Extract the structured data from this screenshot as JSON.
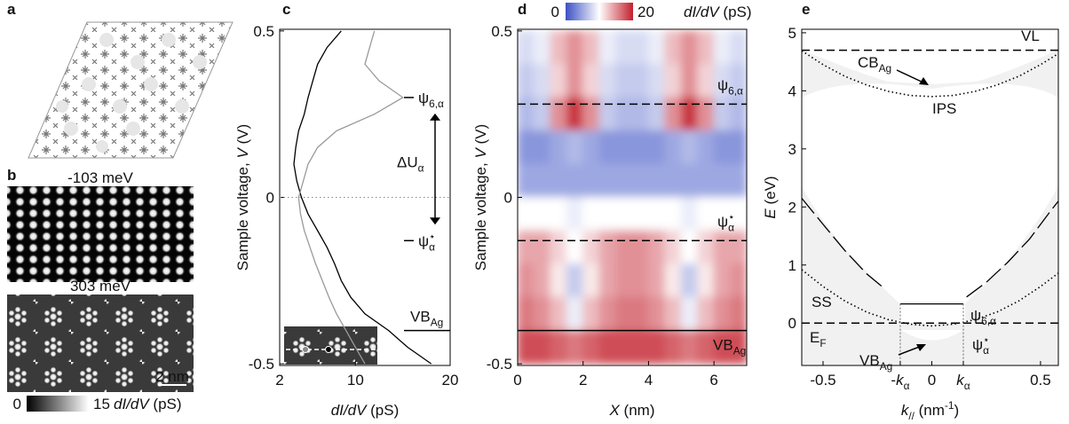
{
  "panel_labels": [
    "a",
    "b",
    "c",
    "d",
    "e"
  ],
  "panel_b": {
    "captions": [
      "-103 meV",
      "303 meV"
    ],
    "scale_bar": "2 nm",
    "colorbar": {
      "ticks": [
        0,
        15
      ],
      "title": [
        {
          "text": "dI/dV",
          "style": "italic"
        },
        {
          "text": " (pS)"
        }
      ]
    }
  },
  "chart_data": [
    {
      "type": "line",
      "x_label": [
        {
          "text": "dI/dV",
          "style": "italic"
        },
        {
          "text": " (pS)"
        }
      ],
      "y_label": [
        {
          "text": "Sample voltage, "
        },
        {
          "text": "V",
          "style": "italic"
        },
        {
          "text": " (V)"
        }
      ],
      "xlim": [
        2,
        20
      ],
      "xticks": [
        2,
        10,
        20
      ],
      "ylim": [
        -0.505,
        0.505
      ],
      "yticks": [
        -0.5,
        0,
        0.5
      ],
      "y": [
        0.5,
        0.45,
        0.4,
        0.35,
        0.3,
        0.25,
        0.2,
        0.15,
        0.1,
        0.05,
        0,
        -0.05,
        -0.1,
        -0.15,
        -0.2,
        -0.25,
        -0.3,
        -0.35,
        -0.4,
        -0.45,
        -0.5
      ],
      "series": [
        {
          "color": "#000000",
          "values": [
            8.5,
            7,
            6,
            5.5,
            5,
            4.6,
            4,
            3.7,
            3.5,
            3.8,
            4.3,
            5,
            6,
            7,
            7.8,
            8.5,
            9.5,
            11,
            13.5,
            15.5,
            18
          ]
        },
        {
          "color": "#9a9a9a",
          "values": [
            12,
            11.5,
            11,
            12.5,
            15,
            12,
            8,
            6,
            5,
            4.5,
            4,
            4.2,
            4.6,
            5.2,
            5.8,
            6.5,
            7.2,
            8,
            9,
            10,
            11
          ]
        }
      ],
      "levels": [
        {
          "value": 0.3,
          "style": "marker",
          "label": [
            {
              "text": "ψ"
            },
            {
              "text": "6,α",
              "style": "sub"
            }
          ]
        },
        {
          "value": -0.13,
          "style": "marker",
          "label": [
            {
              "text": "ψ"
            },
            {
              "text": "α",
              "style": "sub"
            },
            {
              "text": "⋆",
              "style": "sup"
            }
          ]
        },
        {
          "value": -0.4,
          "style": "solid",
          "label": [
            {
              "text": "VB"
            },
            {
              "text": "Ag",
              "style": "sub"
            }
          ]
        },
        {
          "value": 0,
          "style": "dotted"
        }
      ],
      "gap_label": [
        {
          "text": "ΔU"
        },
        {
          "text": "α",
          "style": "sub"
        }
      ]
    },
    {
      "type": "heatmap",
      "x_label": [
        {
          "text": "X",
          "style": "italic"
        },
        {
          "text": " (nm)"
        }
      ],
      "y_label": [
        {
          "text": "Sample voltage, "
        },
        {
          "text": "V",
          "style": "italic"
        },
        {
          "text": " (V)"
        }
      ],
      "xlim": [
        0,
        7
      ],
      "xticks": [
        0,
        2,
        4,
        6
      ],
      "ylim": [
        -0.505,
        0.505
      ],
      "yticks": [
        -0.5,
        0,
        0.5
      ],
      "x": [
        0.25,
        0.75,
        1.25,
        1.75,
        2.25,
        2.75,
        3.25,
        3.75,
        4.25,
        4.75,
        5.25,
        5.75,
        6.25,
        6.75
      ],
      "y": [
        0.45,
        0.35,
        0.25,
        0.15,
        0.05,
        -0.05,
        -0.15,
        -0.25,
        -0.35,
        -0.45
      ],
      "values": [
        [
          8,
          9,
          13,
          15,
          13,
          9,
          8,
          8,
          9,
          13,
          15,
          13,
          9,
          8
        ],
        [
          7,
          8,
          12,
          15,
          12,
          8,
          7,
          7,
          8,
          12,
          15,
          12,
          8,
          7
        ],
        [
          6,
          7,
          15,
          19,
          15,
          7,
          6,
          6,
          7,
          15,
          19,
          15,
          7,
          6
        ],
        [
          4,
          4,
          5,
          6,
          5,
          4,
          4,
          4,
          4,
          5,
          6,
          5,
          4,
          4
        ],
        [
          5,
          5,
          5,
          5,
          5,
          5,
          5,
          5,
          5,
          5,
          5,
          5,
          5,
          5
        ],
        [
          10,
          10,
          10,
          9,
          10,
          10,
          10,
          10,
          10,
          10,
          9,
          10,
          10,
          10
        ],
        [
          14,
          14,
          12,
          10,
          12,
          14,
          15,
          15,
          14,
          12,
          10,
          12,
          14,
          14
        ],
        [
          15,
          14,
          11,
          7,
          11,
          14,
          15,
          15,
          14,
          11,
          7,
          11,
          14,
          15
        ],
        [
          16,
          15,
          13,
          9,
          13,
          15,
          16,
          16,
          15,
          13,
          9,
          13,
          15,
          16
        ],
        [
          18,
          18,
          17,
          16,
          17,
          18,
          18,
          18,
          18,
          17,
          16,
          17,
          18,
          18
        ]
      ],
      "colorbar": {
        "ticks": [
          0,
          20
        ],
        "colors": [
          "#3b50c4",
          "#ffffff",
          "#c3202c"
        ],
        "title": [
          {
            "text": "dI/dV",
            "style": "italic"
          },
          {
            "text": " (pS)"
          }
        ]
      },
      "levels": [
        {
          "value": 0.28,
          "style": "dashed",
          "label": [
            {
              "text": "ψ"
            },
            {
              "text": "6,α",
              "style": "sub"
            }
          ]
        },
        {
          "value": -0.13,
          "style": "dashed",
          "label": [
            {
              "text": "ψ"
            },
            {
              "text": "α",
              "style": "sub"
            },
            {
              "text": "⋆",
              "style": "sup"
            }
          ]
        },
        {
          "value": -0.4,
          "style": "solid",
          "label": [
            {
              "text": "VB"
            },
            {
              "text": "Ag",
              "style": "sub"
            }
          ]
        }
      ]
    },
    {
      "type": "line",
      "x_label": [
        {
          "text": "k",
          "style": "italic"
        },
        {
          "text": "//",
          "style": "sub"
        },
        {
          "text": " (nm"
        },
        {
          "text": "-1",
          "style": "sup"
        },
        {
          "text": ")"
        }
      ],
      "y_label": [
        {
          "text": "E",
          "style": "italic"
        },
        {
          "text": " (eV)"
        }
      ],
      "xlim": [
        -0.598,
        0.582
      ],
      "xticks": [
        -0.5,
        {
          "value": -0.145,
          "label": [
            {
              "text": "-"
            },
            {
              "text": "k",
              "style": "italic"
            },
            {
              "text": "α",
              "style": "sub"
            }
          ]
        },
        0,
        {
          "value": 0.145,
          "label": [
            {
              "text": "k",
              "style": "italic"
            },
            {
              "text": "α",
              "style": "sub"
            }
          ]
        },
        0.5
      ],
      "ylim": [
        -0.73,
        5.06
      ],
      "yticks": [
        0,
        1,
        2,
        3,
        4,
        5
      ],
      "series": [
        {
          "color": "#000000",
          "style": "dotted",
          "x": [
            -0.598,
            -0.5,
            -0.4,
            -0.3,
            -0.2,
            -0.1,
            0,
            0.1,
            0.2,
            0.3,
            0.4,
            0.5,
            0.582
          ],
          "values": [
            4.69,
            4.45,
            4.25,
            4.1,
            3.99,
            3.92,
            3.9,
            3.92,
            3.99,
            4.1,
            4.25,
            4.45,
            4.64
          ]
        },
        {
          "color": "#000000",
          "style": "dotted",
          "x": [
            -0.598,
            -0.5,
            -0.4,
            -0.3,
            -0.2,
            -0.1,
            0,
            0.1,
            0.2,
            0.3,
            0.4,
            0.5,
            0.582
          ],
          "values": [
            0.92,
            0.63,
            0.38,
            0.19,
            0.06,
            -0.02,
            -0.05,
            -0.02,
            0.06,
            0.19,
            0.38,
            0.63,
            0.86
          ]
        },
        {
          "color": "#000000",
          "style": "longdash",
          "x": [
            -0.598,
            -0.5,
            -0.4,
            -0.3,
            -0.22
          ],
          "values": [
            2.15,
            1.7,
            1.25,
            0.85,
            0.6
          ]
        },
        {
          "color": "#000000",
          "style": "longdash",
          "x": [
            0.16,
            0.25,
            0.35,
            0.45,
            0.55,
            0.582
          ],
          "values": [
            0.45,
            0.7,
            1.05,
            1.45,
            1.95,
            2.1
          ]
        },
        {
          "color": "#000000",
          "style": "solid",
          "x": [
            -0.145,
            0.145
          ],
          "values": [
            0.33,
            0.33
          ]
        }
      ],
      "levels": [
        {
          "value": 4.7,
          "style": "dashed"
        },
        {
          "value": 0,
          "style": "dashed"
        }
      ],
      "annotations": [
        [
          {
            "text": "VL"
          }
        ],
        [
          {
            "text": "CB"
          },
          {
            "text": "Ag",
            "style": "sub"
          }
        ],
        [
          {
            "text": "IPS"
          }
        ],
        [
          {
            "text": "SS"
          }
        ],
        [
          {
            "text": "ψ"
          },
          {
            "text": "6,α",
            "style": "sub"
          }
        ],
        [
          {
            "text": "E"
          },
          {
            "text": "F",
            "style": "sub"
          }
        ],
        [
          {
            "text": "VB"
          },
          {
            "text": "Ag",
            "style": "sub"
          }
        ],
        [
          {
            "text": "ψ"
          },
          {
            "text": "α",
            "style": "sub"
          },
          {
            "text": "⋆",
            "style": "sup"
          }
        ]
      ]
    }
  ]
}
